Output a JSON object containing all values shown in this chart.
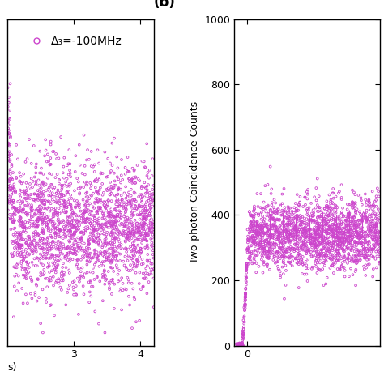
{
  "panel_b_label": "(b)",
  "ylabel": "Two-photon Coincidence Counts",
  "panel_a": {
    "xlim": [
      2.0,
      4.2
    ],
    "ylim": [
      50,
      300
    ],
    "xticks": [
      3,
      4
    ],
    "yticks": [],
    "legend_label": "Δ₃=-100MHz",
    "noise_mean": 140,
    "noise_std": 25,
    "n_points": 2000,
    "marker_size": 4
  },
  "panel_b": {
    "xlim": [
      -0.15,
      1.5
    ],
    "ylim": [
      0,
      1000
    ],
    "xticks": [
      0
    ],
    "yticks": [
      0,
      200,
      400,
      600,
      800,
      1000
    ],
    "flat_mean": 340,
    "flat_std": 55,
    "n_points": 2000,
    "marker_size": 4
  },
  "marker_color": "#CC44CC",
  "marker_lw": 0.6,
  "bg_color": "#ffffff",
  "spine_color": "#000000",
  "tick_color": "#000000",
  "label_fontsize": 9,
  "tick_fontsize": 9,
  "legend_fontsize": 10,
  "panel_label_fontsize": 12
}
